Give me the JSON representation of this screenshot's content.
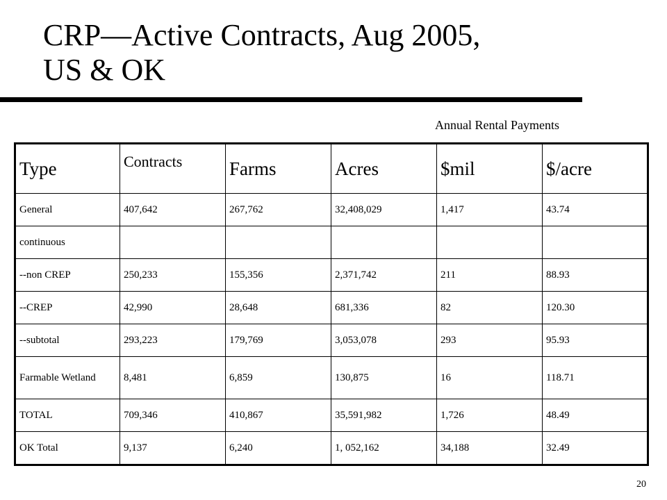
{
  "slide": {
    "title_line1": "CRP—Active Contracts, Aug 2005,",
    "title_line2": "US  & OK",
    "caption": "Annual Rental Payments",
    "page_number": "20"
  },
  "table": {
    "headers": [
      "Type",
      "Contracts",
      "Farms",
      "Acres",
      "$mil",
      "$/acre"
    ],
    "rows": [
      [
        "General",
        "407,642",
        "267,762",
        "32,408,029",
        "1,417",
        "43.74"
      ],
      [
        "continuous",
        "",
        "",
        "",
        "",
        ""
      ],
      [
        "--non CREP",
        "250,233",
        "155,356",
        "2,371,742",
        "211",
        "88.93"
      ],
      [
        "--CREP",
        "42,990",
        "28,648",
        "681,336",
        "82",
        "120.30"
      ],
      [
        "--subtotal",
        "293,223",
        "179,769",
        "3,053,078",
        "293",
        "95.93"
      ],
      [
        "Farmable Wetland",
        "8,481",
        "6,859",
        "130,875",
        "16",
        "118.71"
      ],
      [
        "TOTAL",
        "709,346",
        "410,867",
        "35,591,982",
        "1,726",
        "48.49"
      ],
      [
        "OK Total",
        "9,137",
        "6,240",
        "1, 052,162",
        "34,188",
        "32.49"
      ]
    ]
  }
}
